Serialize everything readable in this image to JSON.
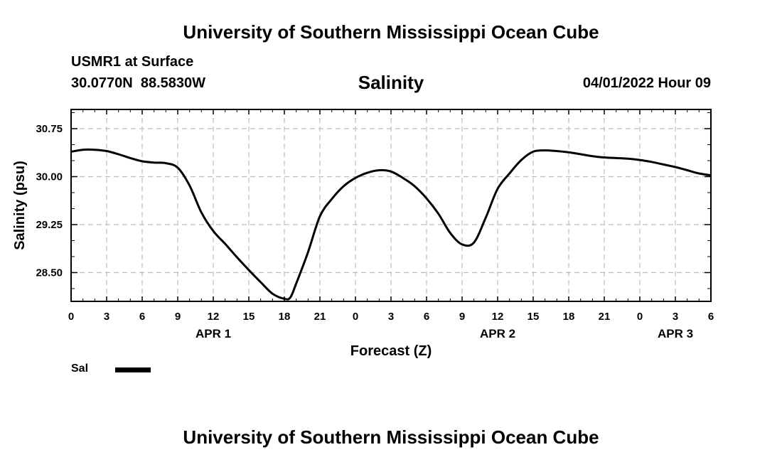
{
  "header": {
    "title": "University of Southern Mississippi Ocean Cube",
    "station": "USMR1 at Surface",
    "coords": "30.0770N  88.5830W",
    "datetime": "04/01/2022 Hour 09"
  },
  "footer": {
    "title": "University of Southern Mississippi Ocean Cube"
  },
  "legend": {
    "label": "Sal"
  },
  "chart_data": {
    "type": "line",
    "title": "Salinity",
    "xlabel": "Forecast (Z)",
    "ylabel": "Salinity (psu)",
    "xlim": [
      0,
      54
    ],
    "ylim": [
      28.05,
      31.05
    ],
    "grid": true,
    "legend_position": "bottom-left",
    "x_tick_labels": [
      "0",
      "3",
      "6",
      "9",
      "12",
      "15",
      "18",
      "21",
      "0",
      "3",
      "6",
      "9",
      "12",
      "15",
      "18",
      "21",
      "0",
      "3",
      "6"
    ],
    "y_ticks": [
      28.5,
      29.25,
      30.0,
      30.75
    ],
    "y_tick_labels": [
      "28.50",
      "29.25",
      "30.00",
      "30.75"
    ],
    "date_labels": [
      {
        "text": "APR 1",
        "x": 12
      },
      {
        "text": "APR 2",
        "x": 36
      },
      {
        "text": "APR 3",
        "x": 51
      }
    ],
    "series": [
      {
        "name": "Sal",
        "color": "#000000",
        "x": [
          0,
          1,
          2,
          3,
          4,
          5,
          6,
          7,
          8,
          9,
          10,
          11,
          12,
          13,
          14,
          15,
          16,
          17,
          18,
          18.5,
          19,
          20,
          21,
          22,
          23,
          24,
          25,
          26,
          27,
          28,
          29,
          30,
          31,
          32,
          33,
          34,
          35,
          36,
          37,
          38,
          39,
          40,
          41,
          42,
          43,
          44,
          45,
          46,
          47,
          48,
          49,
          50,
          51,
          52,
          53,
          54
        ],
        "values": [
          30.39,
          30.42,
          30.42,
          30.4,
          30.35,
          30.29,
          30.24,
          30.22,
          30.21,
          30.14,
          29.86,
          29.44,
          29.15,
          28.95,
          28.74,
          28.54,
          28.35,
          28.17,
          28.09,
          28.11,
          28.33,
          28.82,
          29.38,
          29.65,
          29.85,
          29.98,
          30.06,
          30.1,
          30.08,
          29.98,
          29.85,
          29.66,
          29.42,
          29.12,
          28.94,
          28.97,
          29.36,
          29.81,
          30.05,
          30.26,
          30.39,
          30.41,
          30.4,
          30.38,
          30.35,
          30.32,
          30.3,
          30.29,
          30.28,
          30.26,
          30.23,
          30.19,
          30.15,
          30.1,
          30.05,
          30.02
        ]
      }
    ]
  }
}
